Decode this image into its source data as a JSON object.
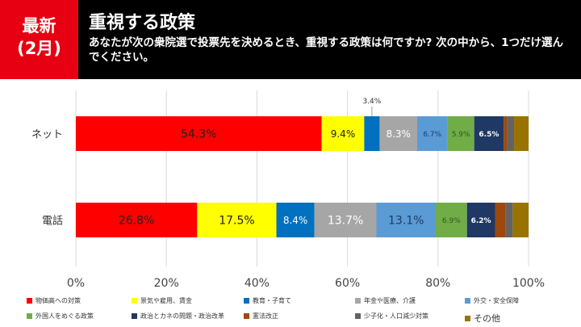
{
  "header": {
    "badge_line1": "最新",
    "badge_line2": "(2月)",
    "title": "重視する政策",
    "subtitle": "あなたが次の衆院選で投票先を決めるとき、重視する政策は何ですか? 次の中から、1つだけ選んでください。"
  },
  "chart_data": {
    "type": "bar",
    "orientation": "horizontal",
    "stacked": true,
    "categories": [
      "ネット",
      "電話"
    ],
    "xlim": [
      0,
      100
    ],
    "xticks": [
      "0%",
      "20%",
      "40%",
      "60%",
      "80%",
      "100%"
    ],
    "grid": true,
    "legend": "bottom",
    "series": [
      {
        "name": "物価高への対策",
        "color": "#ff0000",
        "values": [
          54.3,
          26.8
        ],
        "labels": [
          "54.3%",
          "26.8%"
        ]
      },
      {
        "name": "景気や雇用、賃金",
        "color": "#ffff00",
        "values": [
          9.4,
          17.5
        ],
        "labels": [
          "9.4%",
          "17.5%"
        ]
      },
      {
        "name": "教育・子育て",
        "color": "#0070c0",
        "values": [
          3.4,
          8.4
        ],
        "labels": [
          "3.4%",
          "8.4%"
        ]
      },
      {
        "name": "年金や医療、介護",
        "color": "#a6a6a6",
        "values": [
          8.3,
          13.7
        ],
        "labels": [
          "8.3%",
          "13.7%"
        ]
      },
      {
        "name": "外交・安全保障",
        "color": "#5b9bd5",
        "values": [
          6.7,
          13.1
        ],
        "labels": [
          "6.7%",
          "13.1%"
        ]
      },
      {
        "name": "外国人をめぐる政策",
        "color": "#70ad47",
        "values": [
          5.9,
          6.9
        ],
        "labels": [
          "5.9%",
          "6.9%"
        ]
      },
      {
        "name": "政治とカネの問題・政治改革",
        "color": "#203864",
        "values": [
          6.5,
          6.2
        ],
        "labels": [
          "6.5%",
          "6.2%"
        ]
      },
      {
        "name": "憲法改正",
        "color": "#9e480e",
        "values": [
          0.7,
          2.3
        ],
        "labels": [
          "",
          ""
        ]
      },
      {
        "name": "少子化・人口減少対策",
        "color": "#636363",
        "values": [
          1.6,
          1.6
        ],
        "labels": [
          "",
          ""
        ]
      },
      {
        "name": "その他",
        "color": "#997300",
        "values": [
          3.2,
          3.5
        ],
        "labels": [
          "",
          ""
        ]
      }
    ]
  }
}
